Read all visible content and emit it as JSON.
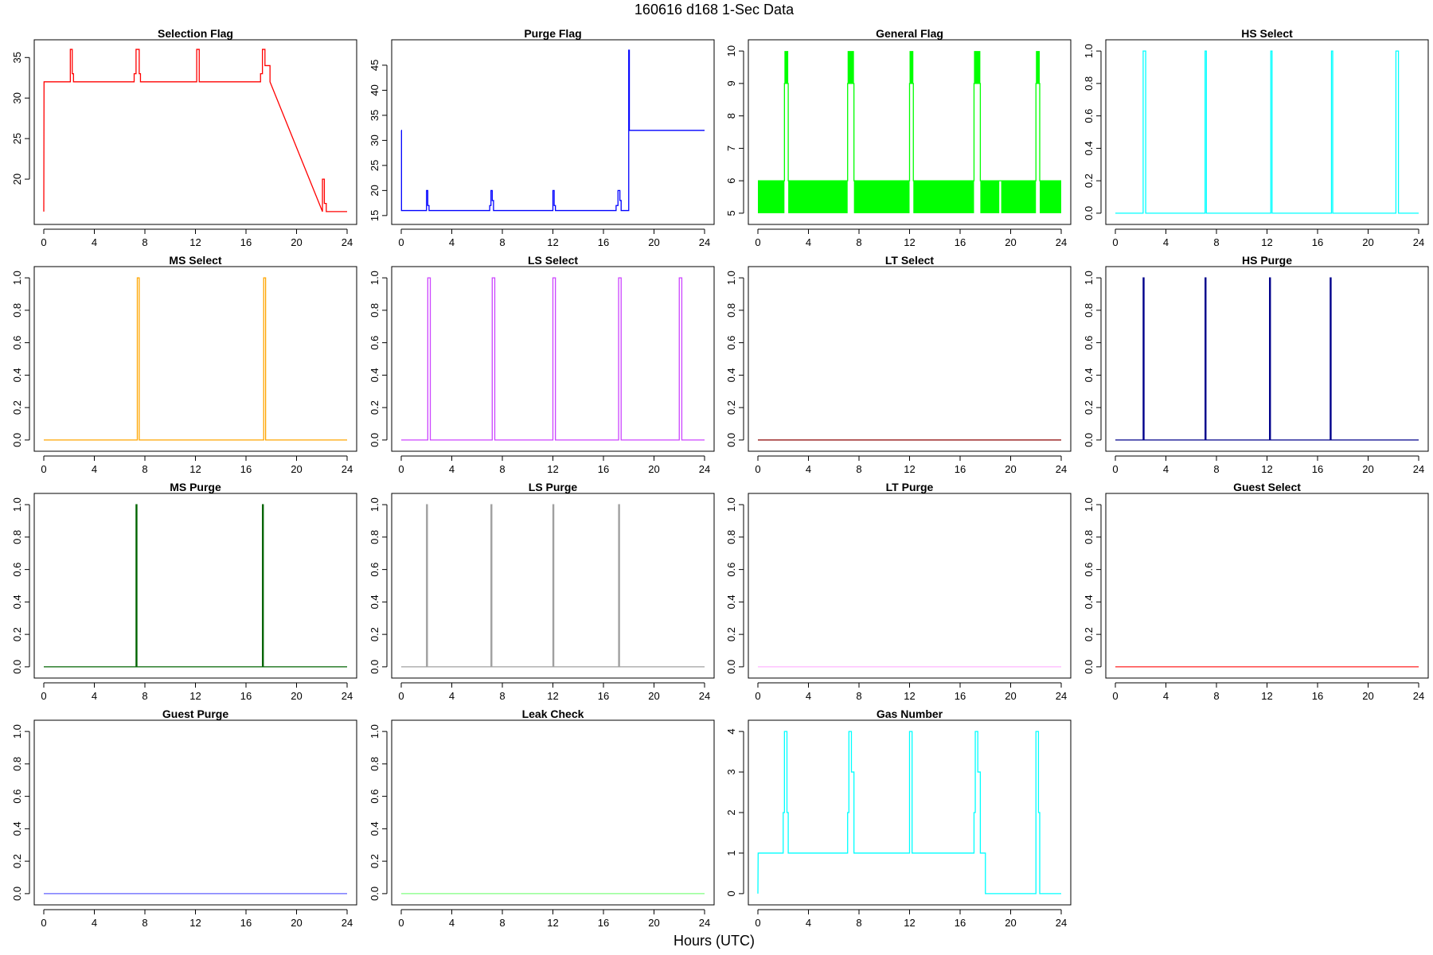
{
  "figure": {
    "title": "160616   d168   1-Sec Data",
    "xlabel": "Hours (UTC)"
  },
  "chart_data": [
    {
      "type": "line",
      "title": "Selection Flag",
      "color": "#ff0000",
      "xlim": [
        0,
        24
      ],
      "ylim": [
        15.2,
        36.4
      ],
      "xticks": [
        0,
        4,
        8,
        12,
        16,
        20,
        24
      ],
      "yticks": [
        20,
        25,
        30,
        35
      ],
      "series": [
        {
          "x": [
            0,
            0.02,
            2.1,
            2.1,
            2.25,
            2.25,
            2.35,
            2.35,
            7.15,
            7.15,
            7.3,
            7.3,
            7.55,
            7.55,
            7.65,
            7.65,
            12.1,
            12.1,
            12.3,
            12.3,
            17.15,
            17.15,
            17.3,
            17.3,
            17.5,
            17.5,
            17.9,
            17.9,
            22.05,
            22.05,
            22.2,
            22.2,
            22.35,
            22.35,
            24
          ],
          "y": [
            16,
            32,
            32,
            36,
            36,
            33,
            33,
            32,
            32,
            33,
            33,
            36,
            36,
            33,
            33,
            32,
            32,
            36,
            36,
            32,
            32,
            33,
            33,
            36,
            36,
            34,
            34,
            32,
            16,
            20,
            20,
            17,
            17,
            16,
            16
          ]
        }
      ]
    },
    {
      "type": "line",
      "title": "Purge Flag",
      "color": "#0000ff",
      "xlim": [
        0,
        24
      ],
      "ylim": [
        14.5,
        48.8
      ],
      "xticks": [
        0,
        4,
        8,
        12,
        16,
        20,
        24
      ],
      "yticks": [
        15,
        20,
        25,
        30,
        35,
        40,
        45
      ],
      "series": [
        {
          "x": [
            0,
            0.02,
            0.02,
            2.0,
            2.0,
            2.1,
            2.1,
            2.2,
            2.2,
            7.0,
            7.0,
            7.1,
            7.1,
            7.2,
            7.2,
            7.3,
            7.3,
            12.0,
            12.0,
            12.1,
            12.1,
            12.2,
            12.2,
            17.0,
            17.0,
            17.15,
            17.15,
            17.3,
            17.3,
            17.4,
            17.4,
            18.0,
            18.0,
            18.05,
            18.05,
            24
          ],
          "y": [
            32,
            32,
            16,
            16,
            20,
            20,
            17,
            17,
            16,
            16,
            17,
            17,
            20,
            20,
            18,
            18,
            16,
            16,
            20,
            20,
            17,
            17,
            16,
            16,
            17,
            17,
            20,
            20,
            18,
            18,
            16,
            16,
            48,
            48,
            32,
            32
          ]
        }
      ]
    },
    {
      "type": "line",
      "title": "General Flag",
      "color": "#00ff00",
      "xlim": [
        0,
        24
      ],
      "ylim": [
        4.85,
        10.15
      ],
      "xticks": [
        0,
        4,
        8,
        12,
        16,
        20,
        24
      ],
      "yticks": [
        5,
        6,
        7,
        8,
        9,
        10
      ],
      "bands": [
        [
          0,
          2.1,
          5,
          6
        ],
        [
          2.1,
          2.4,
          9,
          10
        ],
        [
          2.4,
          7.1,
          5,
          6
        ],
        [
          7.1,
          7.6,
          9,
          10
        ],
        [
          7.6,
          12.0,
          5,
          6
        ],
        [
          12.0,
          12.3,
          9,
          10
        ],
        [
          12.3,
          17.1,
          5,
          6
        ],
        [
          17.1,
          17.6,
          9,
          10
        ],
        [
          17.6,
          19.1,
          5,
          6
        ],
        [
          19.25,
          22.0,
          5,
          6
        ],
        [
          22.0,
          22.3,
          9,
          10
        ],
        [
          22.3,
          24,
          5,
          6
        ]
      ],
      "series": [
        {
          "x": [
            0,
            2.1,
            2.1,
            2.4,
            2.4,
            7.1,
            7.1,
            7.6,
            7.6,
            12.0,
            12.0,
            12.3,
            12.3,
            17.1,
            17.1,
            17.6,
            17.6,
            22.0,
            22.0,
            22.3,
            22.3,
            24
          ],
          "y": [
            6,
            6,
            9,
            9,
            6,
            6,
            9,
            9,
            6,
            6,
            9,
            9,
            6,
            6,
            9,
            9,
            6,
            6,
            9,
            9,
            6,
            6
          ]
        }
      ]
    },
    {
      "type": "line",
      "title": "HS Select",
      "color": "#00ffff",
      "xlim": [
        0,
        24
      ],
      "ylim": [
        -0.03,
        1.03
      ],
      "xticks": [
        0,
        4,
        8,
        12,
        16,
        20,
        24
      ],
      "yticks": [
        0,
        0.2,
        0.4,
        0.6,
        0.8,
        1.0
      ],
      "series": [
        {
          "x": [
            0,
            2.2,
            2.2,
            2.4,
            2.4,
            7.1,
            7.1,
            7.2,
            7.2,
            12.3,
            12.3,
            12.4,
            12.4,
            17.1,
            17.1,
            17.2,
            17.2,
            22.2,
            22.2,
            22.4,
            22.4,
            24
          ],
          "y": [
            0,
            0,
            1,
            1,
            0,
            0,
            1,
            1,
            0,
            0,
            1,
            1,
            0,
            0,
            1,
            1,
            0,
            0,
            1,
            1,
            0,
            0
          ]
        }
      ]
    },
    {
      "type": "line",
      "title": "MS Select",
      "color": "#ffa500",
      "xlim": [
        0,
        24
      ],
      "ylim": [
        -0.03,
        1.03
      ],
      "xticks": [
        0,
        4,
        8,
        12,
        16,
        20,
        24
      ],
      "yticks": [
        0,
        0.2,
        0.4,
        0.6,
        0.8,
        1.0
      ],
      "series": [
        {
          "x": [
            0,
            7.4,
            7.4,
            7.55,
            7.55,
            17.4,
            17.4,
            17.55,
            17.55,
            24
          ],
          "y": [
            0,
            0,
            1,
            1,
            0,
            0,
            1,
            1,
            0,
            0
          ]
        }
      ]
    },
    {
      "type": "line",
      "title": "LS Select",
      "color": "#cc44ff",
      "xlim": [
        0,
        24
      ],
      "ylim": [
        -0.03,
        1.03
      ],
      "xticks": [
        0,
        4,
        8,
        12,
        16,
        20,
        24
      ],
      "yticks": [
        0,
        0.2,
        0.4,
        0.6,
        0.8,
        1.0
      ],
      "series": [
        {
          "x": [
            0,
            2.1,
            2.1,
            2.3,
            2.3,
            7.2,
            7.2,
            7.4,
            7.4,
            12.0,
            12.0,
            12.2,
            12.2,
            17.2,
            17.2,
            17.4,
            17.4,
            22.0,
            22.0,
            22.2,
            22.2,
            24
          ],
          "y": [
            0,
            0,
            1,
            1,
            0,
            0,
            1,
            1,
            0,
            0,
            1,
            1,
            0,
            0,
            1,
            1,
            0,
            0,
            1,
            1,
            0,
            0
          ]
        }
      ]
    },
    {
      "type": "line",
      "title": "LT Select",
      "color": "#8b0000",
      "xlim": [
        0,
        24
      ],
      "ylim": [
        -0.03,
        1.03
      ],
      "xticks": [
        0,
        4,
        8,
        12,
        16,
        20,
        24
      ],
      "yticks": [
        0,
        0.2,
        0.4,
        0.6,
        0.8,
        1.0
      ],
      "series": [
        {
          "x": [
            0,
            24
          ],
          "y": [
            0,
            0
          ]
        }
      ]
    },
    {
      "type": "line",
      "title": "HS Purge",
      "color": "#00008b",
      "xlim": [
        0,
        24
      ],
      "ylim": [
        -0.03,
        1.03
      ],
      "xticks": [
        0,
        4,
        8,
        12,
        16,
        20,
        24
      ],
      "yticks": [
        0,
        0.2,
        0.4,
        0.6,
        0.8,
        1.0
      ],
      "series": [
        {
          "x": [
            0,
            2.2,
            2.2,
            2.27,
            2.27,
            7.1,
            7.1,
            7.17,
            7.17,
            12.2,
            12.2,
            12.27,
            12.27,
            17.0,
            17.0,
            17.07,
            17.07,
            24
          ],
          "y": [
            0,
            0,
            1,
            1,
            0,
            0,
            1,
            1,
            0,
            0,
            1,
            1,
            0,
            0,
            1,
            1,
            0,
            0
          ]
        }
      ]
    },
    {
      "type": "line",
      "title": "MS Purge",
      "color": "#006400",
      "xlim": [
        0,
        24
      ],
      "ylim": [
        -0.03,
        1.03
      ],
      "xticks": [
        0,
        4,
        8,
        12,
        16,
        20,
        24
      ],
      "yticks": [
        0,
        0.2,
        0.4,
        0.6,
        0.8,
        1.0
      ],
      "series": [
        {
          "x": [
            0,
            7.3,
            7.3,
            7.37,
            7.37,
            17.3,
            17.3,
            17.37,
            17.37,
            24
          ],
          "y": [
            0,
            0,
            1,
            1,
            0,
            0,
            1,
            1,
            0,
            0
          ]
        }
      ]
    },
    {
      "type": "line",
      "title": "LS Purge",
      "color": "#a0a0a0",
      "xlim": [
        0,
        24
      ],
      "ylim": [
        -0.03,
        1.03
      ],
      "xticks": [
        0,
        4,
        8,
        12,
        16,
        20,
        24
      ],
      "yticks": [
        0,
        0.2,
        0.4,
        0.6,
        0.8,
        1.0
      ],
      "series": [
        {
          "x": [
            0,
            2.0,
            2.0,
            2.07,
            2.07,
            7.1,
            7.1,
            7.17,
            7.17,
            12.0,
            12.0,
            12.07,
            12.07,
            17.2,
            17.2,
            17.27,
            17.27,
            24
          ],
          "y": [
            0,
            0,
            1,
            1,
            0,
            0,
            1,
            1,
            0,
            0,
            1,
            1,
            0,
            0,
            1,
            1,
            0,
            0
          ]
        }
      ]
    },
    {
      "type": "line",
      "title": "LT Purge",
      "color": "#ffb6ff",
      "xlim": [
        0,
        24
      ],
      "ylim": [
        -0.03,
        1.03
      ],
      "xticks": [
        0,
        4,
        8,
        12,
        16,
        20,
        24
      ],
      "yticks": [
        0,
        0.2,
        0.4,
        0.6,
        0.8,
        1.0
      ],
      "series": [
        {
          "x": [
            0,
            24
          ],
          "y": [
            0,
            0
          ]
        }
      ]
    },
    {
      "type": "line",
      "title": "Guest Select",
      "color": "#ff2020",
      "xlim": [
        0,
        24
      ],
      "ylim": [
        -0.03,
        1.03
      ],
      "xticks": [
        0,
        4,
        8,
        12,
        16,
        20,
        24
      ],
      "yticks": [
        0,
        0.2,
        0.4,
        0.6,
        0.8,
        1.0
      ],
      "series": [
        {
          "x": [
            0,
            24
          ],
          "y": [
            0,
            0
          ]
        }
      ]
    },
    {
      "type": "line",
      "title": "Guest Purge",
      "color": "#6060ff",
      "xlim": [
        0,
        24
      ],
      "ylim": [
        -0.03,
        1.03
      ],
      "xticks": [
        0,
        4,
        8,
        12,
        16,
        20,
        24
      ],
      "yticks": [
        0,
        0.2,
        0.4,
        0.6,
        0.8,
        1.0
      ],
      "series": [
        {
          "x": [
            0,
            24
          ],
          "y": [
            0,
            0
          ]
        }
      ]
    },
    {
      "type": "line",
      "title": "Leak Check",
      "color": "#80ff80",
      "xlim": [
        0,
        24
      ],
      "ylim": [
        -0.03,
        1.03
      ],
      "xticks": [
        0,
        4,
        8,
        12,
        16,
        20,
        24
      ],
      "yticks": [
        0,
        0.2,
        0.4,
        0.6,
        0.8,
        1.0
      ],
      "series": [
        {
          "x": [
            0,
            24
          ],
          "y": [
            0,
            0
          ]
        }
      ]
    },
    {
      "type": "line",
      "title": "Gas Number",
      "color": "#00ffff",
      "xlim": [
        0,
        24
      ],
      "ylim": [
        -0.12,
        4.12
      ],
      "xticks": [
        0,
        4,
        8,
        12,
        16,
        20,
        24
      ],
      "yticks": [
        0,
        1,
        2,
        3,
        4
      ],
      "series": [
        {
          "x": [
            0,
            0.02,
            2.0,
            2.0,
            2.1,
            2.1,
            2.3,
            2.3,
            2.4,
            2.4,
            7.1,
            7.1,
            7.2,
            7.2,
            7.4,
            7.4,
            7.6,
            7.6,
            12.0,
            12.0,
            12.2,
            12.2,
            17.1,
            17.1,
            17.2,
            17.2,
            17.4,
            17.4,
            17.6,
            17.6,
            18.0,
            18.0,
            22.0,
            22.0,
            22.2,
            22.2,
            22.3,
            22.3,
            24
          ],
          "y": [
            0,
            1,
            1,
            2,
            2,
            4,
            4,
            2,
            2,
            1,
            1,
            2,
            2,
            4,
            4,
            3,
            3,
            1,
            1,
            4,
            4,
            1,
            1,
            2,
            2,
            4,
            4,
            3,
            3,
            1,
            1,
            0,
            0,
            4,
            4,
            2,
            2,
            0,
            0
          ]
        }
      ]
    }
  ]
}
